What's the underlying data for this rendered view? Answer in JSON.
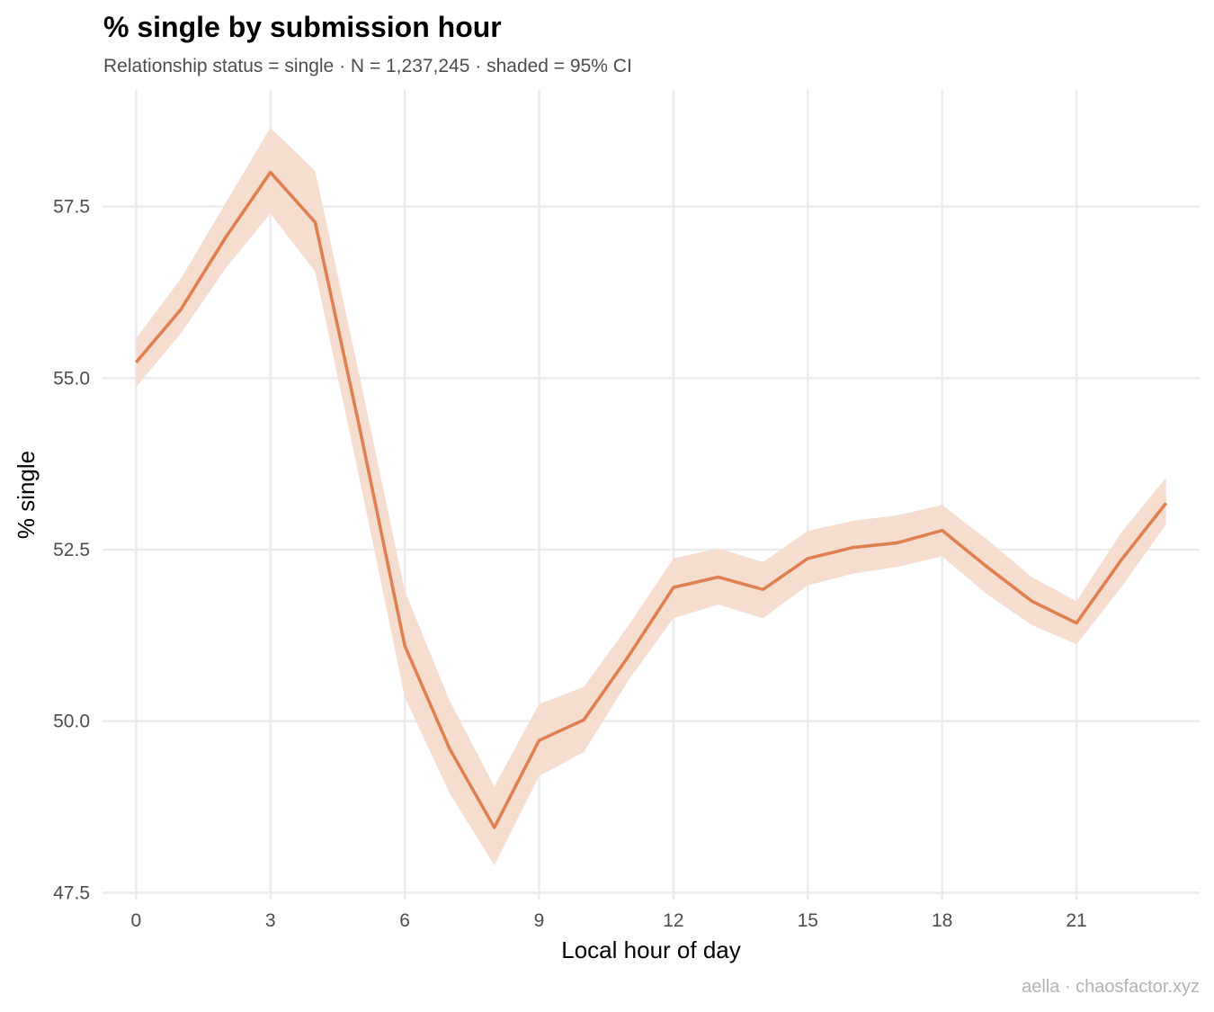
{
  "chart_data": {
    "type": "line",
    "title": "% single by submission hour",
    "subtitle": "Relationship status = single · N = 1,237,245 · shaded = 95% CI",
    "xlabel": "Local hour of day",
    "ylabel": "% single",
    "caption": "aella · chaosfactor.xyz",
    "x": [
      0,
      1,
      2,
      3,
      4,
      5,
      6,
      7,
      8,
      9,
      10,
      11,
      12,
      13,
      14,
      15,
      16,
      17,
      18,
      19,
      20,
      21,
      22,
      23
    ],
    "series": [
      {
        "values": [
          55.23,
          56.0,
          57.05,
          58.0,
          57.27,
          54.25,
          51.1,
          49.6,
          48.45,
          49.72,
          50.02,
          50.95,
          51.95,
          52.1,
          51.92,
          52.37,
          52.53,
          52.6,
          52.78,
          52.25,
          51.75,
          51.43,
          52.35,
          53.18
        ],
        "ci_lower": [
          54.87,
          55.65,
          56.6,
          57.4,
          56.55,
          53.5,
          50.35,
          48.95,
          47.9,
          49.2,
          49.55,
          50.6,
          51.5,
          51.7,
          51.5,
          51.98,
          52.15,
          52.25,
          52.4,
          51.85,
          51.4,
          51.12,
          51.95,
          52.87
        ],
        "ci_upper": [
          55.58,
          56.45,
          57.55,
          58.65,
          58.02,
          55.0,
          51.9,
          50.3,
          49.05,
          50.25,
          50.5,
          51.4,
          52.37,
          52.52,
          52.32,
          52.77,
          52.92,
          53.0,
          53.15,
          52.65,
          52.1,
          51.75,
          52.75,
          53.55
        ]
      }
    ],
    "xlim": [
      -0.75,
      23.75
    ],
    "ylim": [
      47.4,
      59.2
    ],
    "x_ticks": [
      0,
      3,
      6,
      9,
      12,
      15,
      18,
      21
    ],
    "y_ticks": [
      47.5,
      50.0,
      52.5,
      55.0,
      57.5
    ],
    "grid": true,
    "legend": "none",
    "line_color": "#e08050",
    "band_color": "#f5ddd0",
    "grid_color": "#ebebeb"
  }
}
